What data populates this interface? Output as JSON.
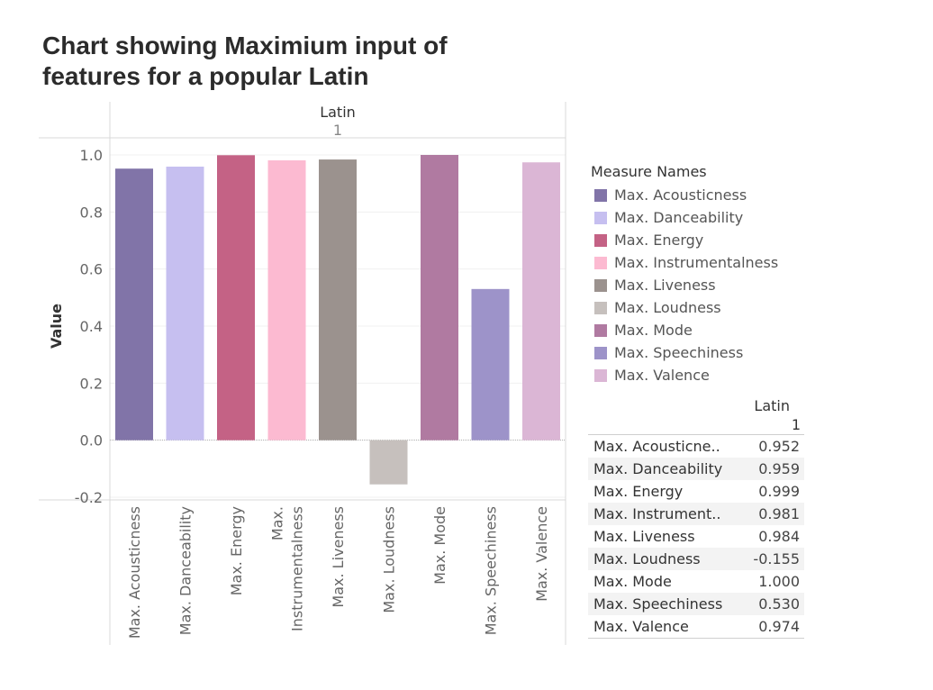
{
  "title": "Chart showing Maximium input of features for a popular Latin",
  "chart_data": {
    "type": "bar",
    "column_header": "Latin",
    "column_subheader": "1",
    "ylabel": "Value",
    "ylim": [
      -0.2,
      1.0
    ],
    "yticks": [
      "1.0",
      "0.8",
      "0.6",
      "0.4",
      "0.2",
      "0.0",
      "-0.2"
    ],
    "ytick_values": [
      1.0,
      0.8,
      0.6,
      0.4,
      0.2,
      0.0,
      -0.2
    ],
    "categories": [
      "Max. Acousticness",
      "Max. Danceability",
      "Max. Energy",
      "Max. Instrumentalness",
      "Max. Liveness",
      "Max. Loudness",
      "Max. Mode",
      "Max. Speechiness",
      "Max. Valence"
    ],
    "category_label_lines": [
      [
        "Max. Acousticness"
      ],
      [
        "Max. Danceability"
      ],
      [
        "Max. Energy"
      ],
      [
        "Max.",
        "Instrumentalness"
      ],
      [
        "Max. Liveness"
      ],
      [
        "Max. Loudness"
      ],
      [
        "Max. Mode"
      ],
      [
        "Max. Speechiness"
      ],
      [
        "Max. Valence"
      ]
    ],
    "values": [
      0.952,
      0.959,
      0.999,
      0.981,
      0.984,
      -0.155,
      1.0,
      0.53,
      0.974
    ],
    "colors": [
      "#8174a8",
      "#c6bff0",
      "#c46285",
      "#fcbad1",
      "#9b928e",
      "#c6c0bd",
      "#b07aa1",
      "#9d93c9",
      "#dbb6d5"
    ],
    "grid": true,
    "legend_position": "right"
  },
  "legend": {
    "title": "Measure Names",
    "items": [
      "Max. Acousticness",
      "Max. Danceability",
      "Max. Energy",
      "Max. Instrumentalness",
      "Max. Liveness",
      "Max. Loudness",
      "Max. Mode",
      "Max. Speechiness",
      "Max. Valence"
    ]
  },
  "table": {
    "header": "Latin",
    "subheader": "1",
    "rows": [
      {
        "label": "Max. Acousticne..",
        "value": "0.952"
      },
      {
        "label": "Max. Danceability",
        "value": "0.959"
      },
      {
        "label": "Max. Energy",
        "value": "0.999"
      },
      {
        "label": "Max. Instrument..",
        "value": "0.981"
      },
      {
        "label": "Max. Liveness",
        "value": "0.984"
      },
      {
        "label": "Max. Loudness",
        "value": "-0.155"
      },
      {
        "label": "Max. Mode",
        "value": "1.000"
      },
      {
        "label": "Max. Speechiness",
        "value": "0.530"
      },
      {
        "label": "Max. Valence",
        "value": "0.974"
      }
    ]
  }
}
